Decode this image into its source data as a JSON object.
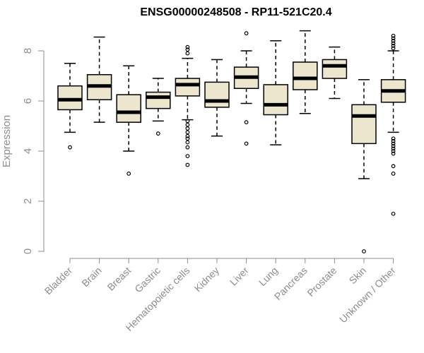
{
  "chart_data": {
    "type": "boxplot",
    "title": "ENSG00000248508 - RP11-521C20.4",
    "xlabel": "",
    "ylabel": "Expression",
    "ylim": [
      0,
      8.8
    ],
    "yticks": [
      0,
      2,
      4,
      6,
      8
    ],
    "colors": {
      "box_fill": "#ede6cf",
      "stroke": "#000000",
      "axis": "#8c8c8c"
    },
    "categories": [
      "Bladder",
      "Brain",
      "Breast",
      "Gastric",
      "Hematopoietic cells",
      "Kidney",
      "Liver",
      "Lung",
      "Pancreas",
      "Prostate",
      "Skin",
      "Unknown / Other"
    ],
    "boxes": [
      {
        "category": "Bladder",
        "min": 4.75,
        "q1": 5.65,
        "median": 6.05,
        "q3": 6.6,
        "max": 7.5,
        "outliers": [
          4.15
        ]
      },
      {
        "category": "Brain",
        "min": 5.15,
        "q1": 6.05,
        "median": 6.6,
        "q3": 7.05,
        "max": 8.55,
        "outliers": []
      },
      {
        "category": "Breast",
        "min": 4.0,
        "q1": 5.15,
        "median": 5.55,
        "q3": 6.25,
        "max": 7.4,
        "outliers": [
          3.1
        ]
      },
      {
        "category": "Gastric",
        "min": 5.2,
        "q1": 5.7,
        "median": 6.15,
        "q3": 6.35,
        "max": 6.9,
        "outliers": [
          4.7
        ]
      },
      {
        "category": "Hematopoietic cells",
        "min": 5.25,
        "q1": 6.2,
        "median": 6.65,
        "q3": 6.9,
        "max": 7.7,
        "outliers": [
          8.15,
          8.05,
          7.9,
          5.2,
          5.05,
          4.9,
          4.75,
          4.6,
          4.5,
          4.35,
          4.15,
          3.8,
          3.45
        ]
      },
      {
        "category": "Kidney",
        "min": 4.6,
        "q1": 5.75,
        "median": 6.0,
        "q3": 6.75,
        "max": 7.65,
        "outliers": []
      },
      {
        "category": "Liver",
        "min": 5.9,
        "q1": 6.5,
        "median": 6.95,
        "q3": 7.35,
        "max": 8.0,
        "outliers": [
          8.7,
          5.15,
          4.3
        ]
      },
      {
        "category": "Lung",
        "min": 4.25,
        "q1": 5.45,
        "median": 5.85,
        "q3": 6.65,
        "max": 8.4,
        "outliers": []
      },
      {
        "category": "Pancreas",
        "min": 5.5,
        "q1": 6.45,
        "median": 6.9,
        "q3": 7.55,
        "max": 8.8,
        "outliers": []
      },
      {
        "category": "Prostate",
        "min": 6.1,
        "q1": 6.9,
        "median": 7.4,
        "q3": 7.65,
        "max": 8.15,
        "outliers": []
      },
      {
        "category": "Skin",
        "min": 2.9,
        "q1": 4.3,
        "median": 5.4,
        "q3": 5.85,
        "max": 6.85,
        "outliers": [
          0.0
        ]
      },
      {
        "category": "Unknown / Other",
        "min": 4.75,
        "q1": 5.95,
        "median": 6.4,
        "q3": 6.85,
        "max": 8.0,
        "outliers": [
          8.6,
          8.5,
          8.4,
          8.3,
          8.2,
          8.1,
          4.5,
          4.4,
          4.3,
          4.2,
          4.1,
          4.0,
          3.9,
          3.4,
          3.1,
          1.5
        ]
      }
    ]
  }
}
